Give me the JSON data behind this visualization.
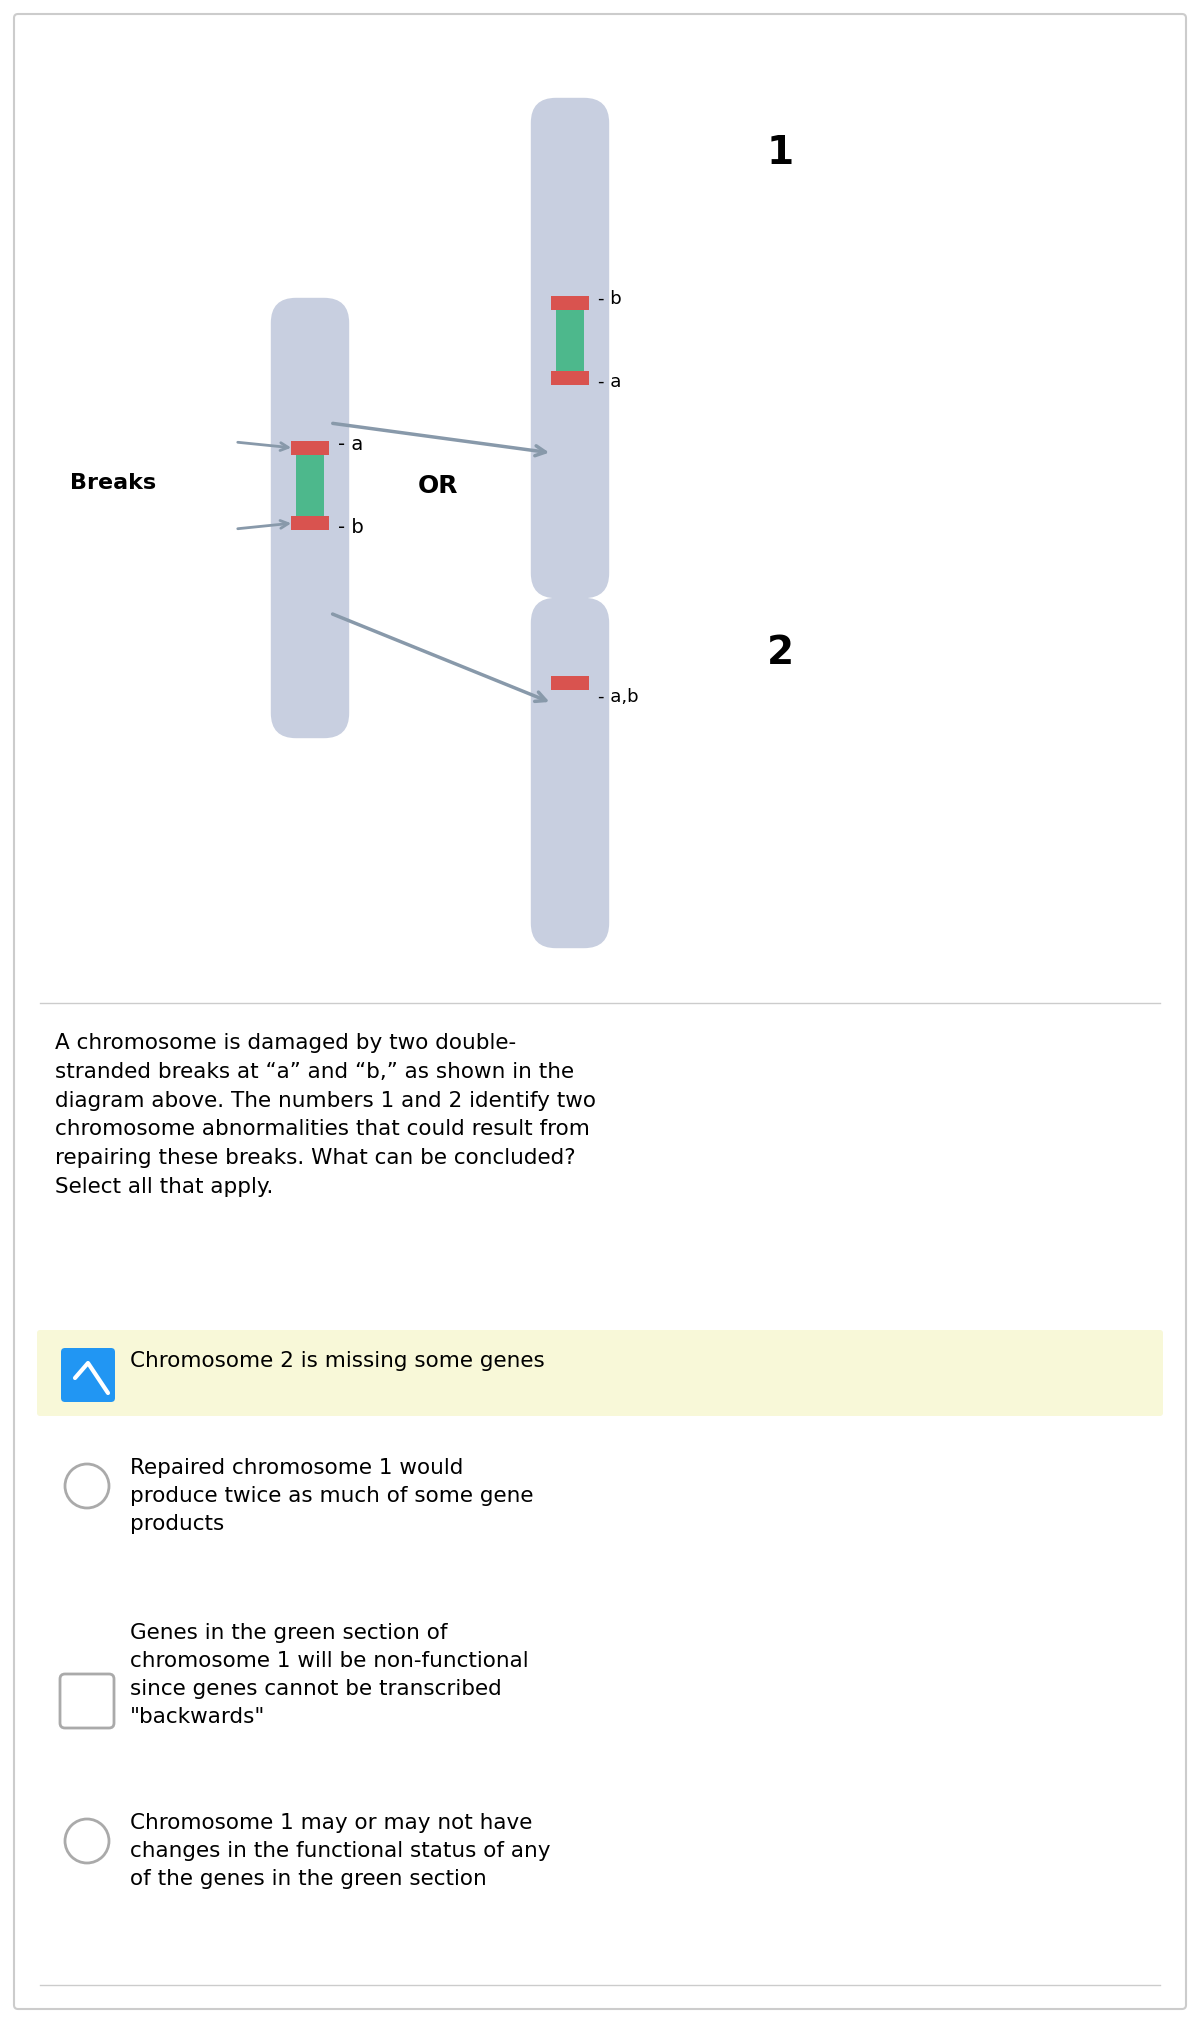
{
  "bg_color": "#ffffff",
  "border_color": "#cccccc",
  "chrom_color": "#c8cfe0",
  "chrom_highlight_green": "#4db88c",
  "chrom_highlight_red": "#d9534f",
  "question_text": "A chromosome is damaged by two double-\nstranded breaks at “a” and “b,” as shown in the\ndiagram above. The numbers 1 and 2 identify two\nchromosome abnormalities that could result from\nrepairing these breaks. What can be concluded?\nSelect all that apply.",
  "option1_text": "Chromosome 2 is missing some genes",
  "option1_bg": "#f8f8d8",
  "option2_text": "Repaired chromosome 1 would\nproduce twice as much of some gene\nproducts",
  "option3_text": "Genes in the green section of\nchromosome 1 will be non-functional\nsince genes cannot be transcribed\n\"backwards\"",
  "option4_text": "Chromosome 1 may or may not have\nchanges in the functional status of any\nof the genes in the green section",
  "arrow_color": "#8899aa",
  "check_color": "#2196F3",
  "circle_color": "#bbbbbb",
  "circle_edge_color": "#aaaaaa"
}
